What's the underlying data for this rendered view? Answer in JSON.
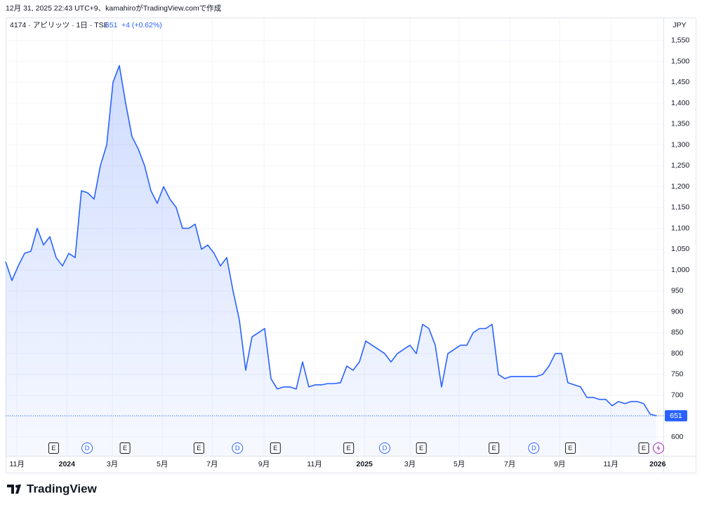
{
  "header": {
    "caption": "12月 31, 2025 22:43 UTC+9、kamahiroがTradingView.comで作成",
    "brand": "TradingView"
  },
  "chart_data": {
    "type": "line",
    "symbol": "4174 · アピリッツ · 1日 · TSE",
    "price": 651,
    "change": "+4 (+0.62%)",
    "currency": "JPY",
    "color": "#2962ff",
    "grid": true,
    "x": [
      0,
      1,
      2,
      3,
      4,
      5,
      6,
      7,
      8,
      9,
      10,
      11,
      12,
      13,
      14,
      15,
      16,
      17,
      18,
      19,
      20,
      21,
      22,
      23,
      24,
      25,
      26,
      27,
      28,
      29,
      30,
      31,
      32,
      33,
      34,
      35,
      36,
      37,
      38,
      39,
      40,
      41,
      42,
      43,
      44,
      45,
      46,
      47,
      48,
      49,
      50,
      51,
      52,
      53,
      54,
      55,
      56,
      57,
      58,
      59,
      60,
      61,
      62,
      63,
      64,
      65,
      66,
      67,
      68,
      69,
      70,
      71,
      72,
      73,
      74,
      75,
      76,
      77,
      78,
      79,
      80,
      81,
      82,
      83,
      84,
      85,
      86,
      87,
      88,
      89,
      90,
      91,
      92,
      93,
      94,
      95,
      96,
      97,
      98,
      99,
      100,
      101,
      102,
      103
    ],
    "values": [
      1020,
      975,
      1010,
      1040,
      1045,
      1100,
      1060,
      1080,
      1030,
      1010,
      1040,
      1030,
      1190,
      1185,
      1170,
      1250,
      1300,
      1450,
      1490,
      1400,
      1320,
      1290,
      1250,
      1190,
      1160,
      1200,
      1170,
      1150,
      1100,
      1100,
      1110,
      1050,
      1060,
      1040,
      1010,
      1030,
      950,
      880,
      760,
      840,
      850,
      860,
      740,
      715,
      720,
      720,
      715,
      780,
      720,
      725,
      725,
      728,
      728,
      730,
      770,
      760,
      780,
      830,
      820,
      810,
      800,
      780,
      800,
      810,
      820,
      800,
      870,
      860,
      820,
      720,
      800,
      810,
      820,
      820,
      850,
      860,
      860,
      870,
      750,
      740,
      745,
      745,
      745,
      745,
      745,
      750,
      770,
      800,
      800,
      730,
      725,
      720,
      695,
      695,
      690,
      690,
      675,
      685,
      680,
      685,
      685,
      680,
      655,
      651
    ],
    "xlim": [
      0,
      104
    ],
    "xticks": [
      {
        "value": 1.8,
        "label": "11月"
      },
      {
        "value": 9.7,
        "label": "2024"
      },
      {
        "value": 16.9,
        "label": "3月"
      },
      {
        "value": 24.8,
        "label": "5月"
      },
      {
        "value": 32.7,
        "label": "7月"
      },
      {
        "value": 40.9,
        "label": "9月"
      },
      {
        "value": 48.9,
        "label": "11月"
      },
      {
        "value": 56.8,
        "label": "2025"
      },
      {
        "value": 64,
        "label": "3月"
      },
      {
        "value": 71.8,
        "label": "5月"
      },
      {
        "value": 79.8,
        "label": "7月"
      },
      {
        "value": 87.7,
        "label": "9月"
      },
      {
        "value": 95.8,
        "label": "11月"
      },
      {
        "value": 103.2,
        "label": "2026"
      }
    ],
    "ylim": [
      555,
      1600
    ],
    "yticks": [
      600,
      650,
      700,
      750,
      800,
      850,
      900,
      950,
      {
        "value": 1000,
        "label": "1,000"
      },
      {
        "value": 1050,
        "label": "1,050"
      },
      {
        "value": 1100,
        "label": "1,100"
      },
      {
        "value": 1150,
        "label": "1,150"
      },
      {
        "value": 1200,
        "label": "1,200"
      },
      {
        "value": 1250,
        "label": "1,250"
      },
      {
        "value": 1300,
        "label": "1,300"
      },
      {
        "value": 1350,
        "label": "1,350"
      },
      {
        "value": 1400,
        "label": "1,400"
      },
      {
        "value": 1450,
        "label": "1,450"
      },
      {
        "value": 1500,
        "label": "1,500"
      },
      {
        "value": 1550,
        "label": "1,550"
      }
    ],
    "events": [
      {
        "label": "E",
        "x": 7.6
      },
      {
        "label": "D",
        "x": 12.9
      },
      {
        "label": "E",
        "x": 18.9
      },
      {
        "label": "E",
        "x": 30.6
      },
      {
        "label": "D",
        "x": 36.7
      },
      {
        "label": "E",
        "x": 42.7
      },
      {
        "label": "E",
        "x": 54.3
      },
      {
        "label": "D",
        "x": 60
      },
      {
        "label": "E",
        "x": 65.8
      },
      {
        "label": "E",
        "x": 77.3
      },
      {
        "label": "D",
        "x": 83.6
      },
      {
        "label": "E",
        "x": 89.4
      },
      {
        "label": "E",
        "x": 101
      }
    ]
  }
}
